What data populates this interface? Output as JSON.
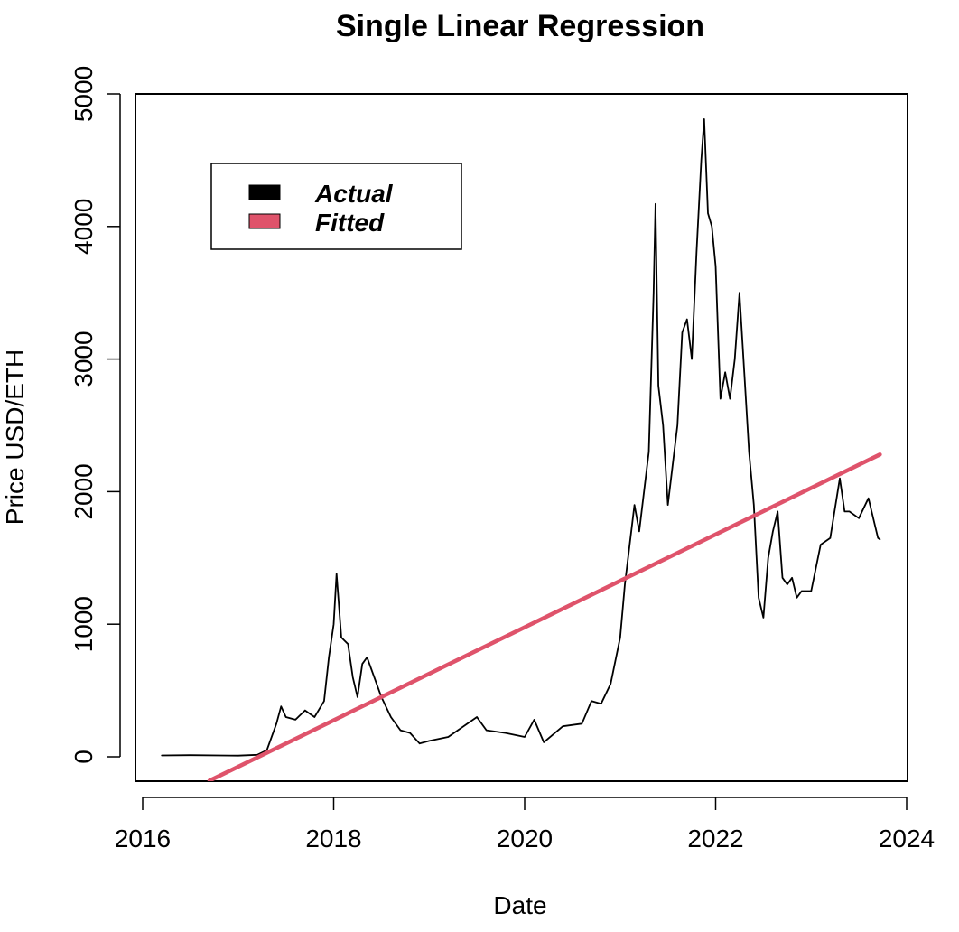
{
  "chart_data": {
    "type": "line",
    "title": "Single Linear Regression",
    "xlabel": "Date",
    "ylabel": "Price USD/ETH",
    "xlim": [
      2016.0,
      2024.0
    ],
    "ylim": [
      -180,
      5000
    ],
    "x_ticks": [
      2016,
      2018,
      2020,
      2022,
      2024
    ],
    "y_ticks": [
      0,
      1000,
      2000,
      3000,
      4000,
      5000
    ],
    "grid": false,
    "legend": {
      "position": "top-left",
      "entries": [
        {
          "label": "Actual",
          "color": "#000000"
        },
        {
          "label": "Fitted",
          "color": "#DF536B"
        }
      ]
    },
    "series": [
      {
        "name": "Actual",
        "color": "#000000",
        "points": [
          [
            2016.2,
            10
          ],
          [
            2016.5,
            12
          ],
          [
            2016.8,
            10
          ],
          [
            2017.0,
            9
          ],
          [
            2017.2,
            15
          ],
          [
            2017.3,
            50
          ],
          [
            2017.4,
            250
          ],
          [
            2017.45,
            380
          ],
          [
            2017.5,
            300
          ],
          [
            2017.6,
            280
          ],
          [
            2017.7,
            350
          ],
          [
            2017.8,
            300
          ],
          [
            2017.9,
            420
          ],
          [
            2017.95,
            750
          ],
          [
            2018.0,
            1000
          ],
          [
            2018.03,
            1380
          ],
          [
            2018.08,
            900
          ],
          [
            2018.15,
            850
          ],
          [
            2018.2,
            600
          ],
          [
            2018.25,
            450
          ],
          [
            2018.3,
            700
          ],
          [
            2018.35,
            750
          ],
          [
            2018.4,
            650
          ],
          [
            2018.5,
            450
          ],
          [
            2018.6,
            300
          ],
          [
            2018.7,
            200
          ],
          [
            2018.8,
            180
          ],
          [
            2018.9,
            100
          ],
          [
            2019.0,
            120
          ],
          [
            2019.2,
            150
          ],
          [
            2019.4,
            250
          ],
          [
            2019.5,
            300
          ],
          [
            2019.6,
            200
          ],
          [
            2019.8,
            180
          ],
          [
            2020.0,
            150
          ],
          [
            2020.1,
            280
          ],
          [
            2020.2,
            110
          ],
          [
            2020.4,
            230
          ],
          [
            2020.6,
            250
          ],
          [
            2020.7,
            420
          ],
          [
            2020.8,
            400
          ],
          [
            2020.9,
            550
          ],
          [
            2021.0,
            900
          ],
          [
            2021.05,
            1300
          ],
          [
            2021.1,
            1600
          ],
          [
            2021.15,
            1900
          ],
          [
            2021.2,
            1700
          ],
          [
            2021.3,
            2300
          ],
          [
            2021.35,
            3500
          ],
          [
            2021.37,
            4170
          ],
          [
            2021.4,
            2800
          ],
          [
            2021.45,
            2500
          ],
          [
            2021.5,
            1900
          ],
          [
            2021.55,
            2200
          ],
          [
            2021.6,
            2500
          ],
          [
            2021.65,
            3200
          ],
          [
            2021.7,
            3300
          ],
          [
            2021.75,
            3000
          ],
          [
            2021.8,
            3800
          ],
          [
            2021.85,
            4500
          ],
          [
            2021.88,
            4810
          ],
          [
            2021.92,
            4100
          ],
          [
            2021.96,
            4000
          ],
          [
            2022.0,
            3700
          ],
          [
            2022.05,
            2700
          ],
          [
            2022.1,
            2900
          ],
          [
            2022.15,
            2700
          ],
          [
            2022.2,
            3000
          ],
          [
            2022.25,
            3500
          ],
          [
            2022.3,
            2900
          ],
          [
            2022.35,
            2300
          ],
          [
            2022.4,
            1900
          ],
          [
            2022.45,
            1200
          ],
          [
            2022.5,
            1050
          ],
          [
            2022.55,
            1500
          ],
          [
            2022.6,
            1700
          ],
          [
            2022.65,
            1850
          ],
          [
            2022.7,
            1350
          ],
          [
            2022.75,
            1300
          ],
          [
            2022.8,
            1350
          ],
          [
            2022.85,
            1200
          ],
          [
            2022.9,
            1250
          ],
          [
            2023.0,
            1250
          ],
          [
            2023.1,
            1600
          ],
          [
            2023.2,
            1650
          ],
          [
            2023.3,
            2100
          ],
          [
            2023.35,
            1850
          ],
          [
            2023.4,
            1850
          ],
          [
            2023.5,
            1800
          ],
          [
            2023.6,
            1950
          ],
          [
            2023.7,
            1650
          ],
          [
            2023.72,
            1640
          ]
        ]
      },
      {
        "name": "Fitted",
        "color": "#DF536B",
        "points": [
          [
            2016.7,
            -180
          ],
          [
            2023.72,
            2280
          ]
        ]
      }
    ]
  }
}
